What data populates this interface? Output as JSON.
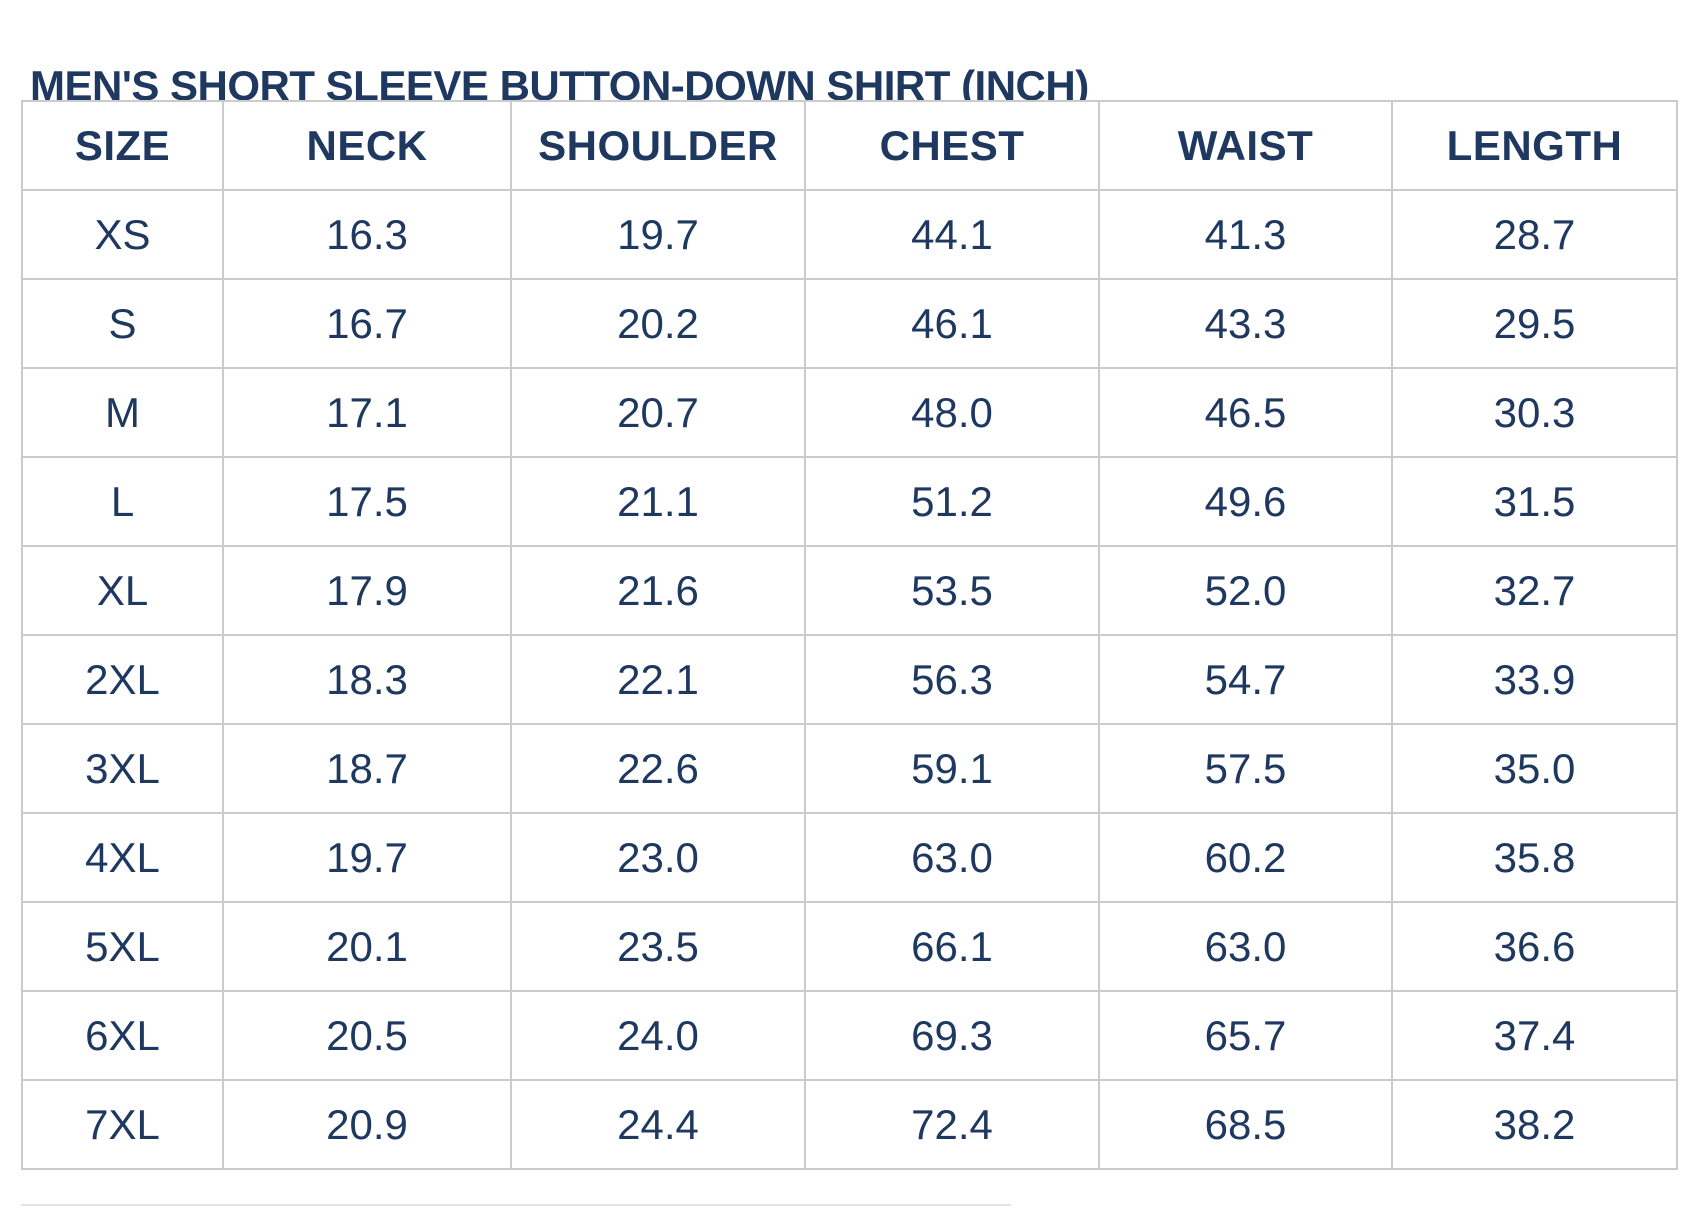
{
  "title": "MEN'S SHORT SLEEVE BUTTON-DOWN SHIRT (INCH)",
  "colors": {
    "text": "#1e3860",
    "grid_border": "#cbcbcb",
    "background": "#ffffff"
  },
  "chart_data": {
    "type": "table",
    "title": "MEN'S SHORT SLEEVE BUTTON-DOWN SHIRT (INCH)",
    "unit": "INCH",
    "columns": [
      "SIZE",
      "NECK",
      "SHOULDER",
      "CHEST",
      "WAIST",
      "LENGTH"
    ],
    "rows": [
      [
        "XS",
        "16.3",
        "19.7",
        "44.1",
        "41.3",
        "28.7"
      ],
      [
        "S",
        "16.7",
        "20.2",
        "46.1",
        "43.3",
        "29.5"
      ],
      [
        "M",
        "17.1",
        "20.7",
        "48.0",
        "46.5",
        "30.3"
      ],
      [
        "L",
        "17.5",
        "21.1",
        "51.2",
        "49.6",
        "31.5"
      ],
      [
        "XL",
        "17.9",
        "21.6",
        "53.5",
        "52.0",
        "32.7"
      ],
      [
        "2XL",
        "18.3",
        "22.1",
        "56.3",
        "54.7",
        "33.9"
      ],
      [
        "3XL",
        "18.7",
        "22.6",
        "59.1",
        "57.5",
        "35.0"
      ],
      [
        "4XL",
        "19.7",
        "23.0",
        "63.0",
        "60.2",
        "35.8"
      ],
      [
        "5XL",
        "20.1",
        "23.5",
        "66.1",
        "63.0",
        "36.6"
      ],
      [
        "6XL",
        "20.5",
        "24.0",
        "69.3",
        "65.7",
        "37.4"
      ],
      [
        "7XL",
        "20.9",
        "24.4",
        "72.4",
        "68.5",
        "38.2"
      ]
    ],
    "layout": {
      "grid": true,
      "header_row": true,
      "text_align": "center"
    }
  }
}
